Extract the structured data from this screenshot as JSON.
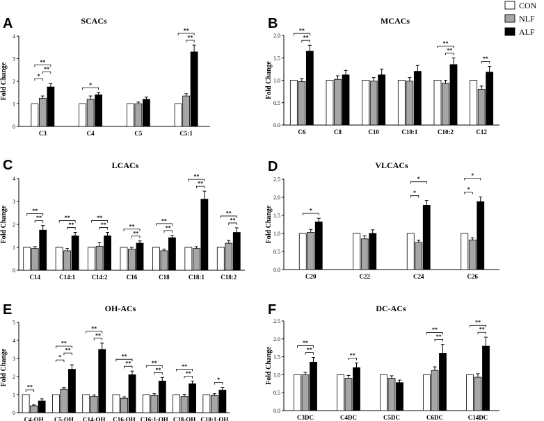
{
  "legend": {
    "entries": [
      {
        "label": "CON",
        "color": "#ffffff"
      },
      {
        "label": "NLF",
        "color": "#a6a6a6"
      },
      {
        "label": "ALF",
        "color": "#000000"
      }
    ]
  },
  "chart_data": [
    {
      "id": "A",
      "type": "bar",
      "title": "SCACs",
      "ylabel": "Fold Change",
      "ylim": [
        0,
        4
      ],
      "yticks": [
        "0",
        "1",
        "2",
        "3",
        "4"
      ],
      "categories": [
        "C3",
        "C4",
        "C5",
        "C5:1"
      ],
      "series": [
        {
          "name": "CON",
          "values": [
            1.0,
            1.0,
            1.0,
            1.0
          ],
          "errors": [
            0,
            0,
            0,
            0
          ]
        },
        {
          "name": "NLF",
          "values": [
            1.25,
            1.2,
            1.0,
            1.35
          ],
          "errors": [
            0.1,
            0.15,
            0.08,
            0.1
          ]
        },
        {
          "name": "ALF",
          "values": [
            1.75,
            1.4,
            1.2,
            3.3
          ],
          "errors": [
            0.15,
            0.1,
            0.1,
            0.3
          ]
        }
      ],
      "annotations": [
        {
          "category": 0,
          "from": 0,
          "to": 1,
          "label": "*",
          "level": 0
        },
        {
          "category": 0,
          "from": 1,
          "to": 2,
          "label": "**",
          "level": 1
        },
        {
          "category": 0,
          "from": 0,
          "to": 2,
          "label": "**",
          "level": 2
        },
        {
          "category": 1,
          "from": 0,
          "to": 2,
          "label": "*",
          "level": 0
        },
        {
          "category": 3,
          "from": 1,
          "to": 2,
          "label": "**",
          "level": 0
        },
        {
          "category": 3,
          "from": 0,
          "to": 2,
          "label": "**",
          "level": 1
        }
      ]
    },
    {
      "id": "B",
      "type": "bar",
      "title": "MCACs",
      "ylabel": "Fold Change",
      "ylim": [
        0,
        2
      ],
      "yticks": [
        "0.0",
        "0.5",
        "1.0",
        "1.5",
        "2.0"
      ],
      "categories": [
        "C6",
        "C8",
        "C10",
        "C10:1",
        "C10:2",
        "C12"
      ],
      "series": [
        {
          "name": "CON",
          "values": [
            1.0,
            1.0,
            1.0,
            1.0,
            1.0,
            1.0
          ],
          "errors": [
            0,
            0,
            0,
            0,
            0,
            0
          ]
        },
        {
          "name": "NLF",
          "values": [
            0.97,
            1.02,
            0.98,
            0.98,
            0.93,
            0.8
          ],
          "errors": [
            0.07,
            0.08,
            0.08,
            0.08,
            0.07,
            0.07
          ]
        },
        {
          "name": "ALF",
          "values": [
            1.65,
            1.12,
            1.12,
            1.2,
            1.35,
            1.18
          ],
          "errors": [
            0.13,
            0.1,
            0.13,
            0.13,
            0.15,
            0.13
          ]
        }
      ],
      "annotations": [
        {
          "category": 0,
          "from": 1,
          "to": 2,
          "label": "**",
          "level": 0
        },
        {
          "category": 0,
          "from": 0,
          "to": 2,
          "label": "**",
          "level": 1
        },
        {
          "category": 4,
          "from": 1,
          "to": 2,
          "label": "**",
          "level": 0
        },
        {
          "category": 4,
          "from": 0,
          "to": 2,
          "label": "**",
          "level": 1
        },
        {
          "category": 5,
          "from": 1,
          "to": 2,
          "label": "**",
          "level": 0
        }
      ]
    },
    {
      "id": "C",
      "type": "bar",
      "title": "LCACs",
      "ylabel": "Fold Change",
      "ylim": [
        0,
        4
      ],
      "yticks": [
        "0",
        "1",
        "2",
        "3",
        "4"
      ],
      "categories": [
        "C14",
        "C14:1",
        "C14:2",
        "C16",
        "C18",
        "C18:1",
        "C18:2"
      ],
      "series": [
        {
          "name": "CON",
          "values": [
            1.0,
            1.0,
            1.0,
            1.0,
            1.0,
            1.0,
            1.0
          ],
          "errors": [
            0,
            0,
            0,
            0,
            0,
            0,
            0
          ]
        },
        {
          "name": "NLF",
          "values": [
            0.95,
            0.85,
            1.05,
            0.92,
            0.85,
            0.95,
            1.18
          ],
          "errors": [
            0.08,
            0.1,
            0.15,
            0.08,
            0.07,
            0.08,
            0.12
          ]
        },
        {
          "name": "ALF",
          "values": [
            1.75,
            1.5,
            1.5,
            1.18,
            1.42,
            3.1,
            1.65
          ],
          "errors": [
            0.2,
            0.15,
            0.15,
            0.1,
            0.1,
            0.35,
            0.2
          ]
        }
      ],
      "annotations": [
        {
          "category": 0,
          "from": 1,
          "to": 2,
          "label": "**",
          "level": 0
        },
        {
          "category": 0,
          "from": 0,
          "to": 2,
          "label": "**",
          "level": 1
        },
        {
          "category": 1,
          "from": 1,
          "to": 2,
          "label": "**",
          "level": 0
        },
        {
          "category": 1,
          "from": 0,
          "to": 2,
          "label": "**",
          "level": 1
        },
        {
          "category": 2,
          "from": 1,
          "to": 2,
          "label": "**",
          "level": 0
        },
        {
          "category": 2,
          "from": 0,
          "to": 2,
          "label": "**",
          "level": 1
        },
        {
          "category": 3,
          "from": 1,
          "to": 2,
          "label": "**",
          "level": 0
        },
        {
          "category": 3,
          "from": 0,
          "to": 2,
          "label": "**",
          "level": 1
        },
        {
          "category": 4,
          "from": 1,
          "to": 2,
          "label": "**",
          "level": 0
        },
        {
          "category": 4,
          "from": 0,
          "to": 2,
          "label": "**",
          "level": 1
        },
        {
          "category": 5,
          "from": 1,
          "to": 2,
          "label": "**",
          "level": 0
        },
        {
          "category": 5,
          "from": 0,
          "to": 2,
          "label": "**",
          "level": 1
        },
        {
          "category": 6,
          "from": 1,
          "to": 2,
          "label": "**",
          "level": 0
        },
        {
          "category": 6,
          "from": 0,
          "to": 2,
          "label": "**",
          "level": 1
        }
      ]
    },
    {
      "id": "D",
      "type": "bar",
      "title": "VLCACs",
      "ylabel": "Fold Change",
      "ylim": [
        0,
        2.5
      ],
      "yticks": [
        "0.0",
        "0.5",
        "1.0",
        "1.5",
        "2.0",
        "2.5"
      ],
      "categories": [
        "C20",
        "C22",
        "C24",
        "C26"
      ],
      "series": [
        {
          "name": "CON",
          "values": [
            1.0,
            1.0,
            1.0,
            1.0
          ],
          "errors": [
            0,
            0,
            0,
            0
          ]
        },
        {
          "name": "NLF",
          "values": [
            1.03,
            0.85,
            0.75,
            0.82
          ],
          "errors": [
            0.08,
            0.08,
            0.06,
            0.06
          ]
        },
        {
          "name": "ALF",
          "values": [
            1.32,
            1.0,
            1.78,
            1.88
          ],
          "errors": [
            0.1,
            0.1,
            0.13,
            0.13
          ]
        }
      ],
      "annotations": [
        {
          "category": 0,
          "from": 0,
          "to": 2,
          "label": "*",
          "level": 0
        },
        {
          "category": 2,
          "from": 0,
          "to": 1,
          "label": "*",
          "level": 0
        },
        {
          "category": 2,
          "from": 0,
          "to": 2,
          "label": "*",
          "level": 2
        },
        {
          "category": 3,
          "from": 0,
          "to": 1,
          "label": "*",
          "level": 0
        },
        {
          "category": 3,
          "from": 0,
          "to": 2,
          "label": "*",
          "level": 2
        }
      ]
    },
    {
      "id": "E",
      "type": "bar",
      "title": "OH-ACs",
      "ylabel": "Fold Change",
      "ylim": [
        0,
        5
      ],
      "yticks": [
        "0",
        "1",
        "2",
        "3",
        "4",
        "5"
      ],
      "categories": [
        "C4-OH",
        "C5-OH",
        "C14-OH",
        "C16-OH",
        "C16:1-OH",
        "C18-OH",
        "C18:1-OH"
      ],
      "series": [
        {
          "name": "CON",
          "values": [
            1.0,
            1.0,
            1.0,
            1.0,
            1.0,
            1.0,
            1.0
          ],
          "errors": [
            0,
            0,
            0,
            0,
            0,
            0,
            0
          ]
        },
        {
          "name": "NLF",
          "values": [
            0.38,
            1.3,
            0.9,
            0.8,
            0.95,
            0.9,
            0.95
          ],
          "errors": [
            0.05,
            0.1,
            0.08,
            0.08,
            0.1,
            0.12,
            0.1
          ]
        },
        {
          "name": "ALF",
          "values": [
            0.65,
            2.4,
            3.5,
            2.1,
            1.75,
            1.6,
            1.25
          ],
          "errors": [
            0.12,
            0.25,
            0.35,
            0.2,
            0.2,
            0.15,
            0.15
          ]
        }
      ],
      "annotations": [
        {
          "category": 0,
          "from": 0,
          "to": 1,
          "label": "**",
          "level": 0
        },
        {
          "category": 1,
          "from": 0,
          "to": 1,
          "label": "*",
          "level": 0
        },
        {
          "category": 1,
          "from": 1,
          "to": 2,
          "label": "**",
          "level": 1
        },
        {
          "category": 1,
          "from": 0,
          "to": 2,
          "label": "**",
          "level": 2
        },
        {
          "category": 2,
          "from": 1,
          "to": 2,
          "label": "**",
          "level": 0
        },
        {
          "category": 2,
          "from": 0,
          "to": 2,
          "label": "**",
          "level": 1
        },
        {
          "category": 3,
          "from": 1,
          "to": 2,
          "label": "**",
          "level": 0
        },
        {
          "category": 3,
          "from": 0,
          "to": 2,
          "label": "**",
          "level": 1
        },
        {
          "category": 4,
          "from": 1,
          "to": 2,
          "label": "**",
          "level": 0
        },
        {
          "category": 4,
          "from": 0,
          "to": 2,
          "label": "**",
          "level": 1
        },
        {
          "category": 5,
          "from": 1,
          "to": 2,
          "label": "**",
          "level": 0
        },
        {
          "category": 5,
          "from": 0,
          "to": 2,
          "label": "**",
          "level": 1
        },
        {
          "category": 6,
          "from": 1,
          "to": 2,
          "label": "*",
          "level": 0
        }
      ]
    },
    {
      "id": "F",
      "type": "bar",
      "title": "DC-ACs",
      "ylabel": "Fold Change",
      "ylim": [
        0,
        2.5
      ],
      "yticks": [
        "0.0",
        "0.5",
        "1.0",
        "1.5",
        "2.0",
        "2.5"
      ],
      "categories": [
        "C3DC",
        "C4DC",
        "C5DC",
        "C6DC",
        "C14DC"
      ],
      "series": [
        {
          "name": "CON",
          "values": [
            1.0,
            1.0,
            1.0,
            1.0,
            1.0
          ],
          "errors": [
            0,
            0,
            0,
            0,
            0
          ]
        },
        {
          "name": "NLF",
          "values": [
            1.0,
            0.9,
            0.9,
            1.12,
            0.93
          ],
          "errors": [
            0.07,
            0.08,
            0.07,
            0.1,
            0.1
          ]
        },
        {
          "name": "ALF",
          "values": [
            1.35,
            1.2,
            0.78,
            1.6,
            1.8
          ],
          "errors": [
            0.13,
            0.13,
            0.07,
            0.25,
            0.25
          ]
        }
      ],
      "annotations": [
        {
          "category": 0,
          "from": 1,
          "to": 2,
          "label": "**",
          "level": 0
        },
        {
          "category": 0,
          "from": 0,
          "to": 2,
          "label": "**",
          "level": 1
        },
        {
          "category": 1,
          "from": 1,
          "to": 2,
          "label": "**",
          "level": 0
        },
        {
          "category": 3,
          "from": 1,
          "to": 2,
          "label": "**",
          "level": 0
        },
        {
          "category": 3,
          "from": 0,
          "to": 2,
          "label": "**",
          "level": 1
        },
        {
          "category": 4,
          "from": 1,
          "to": 2,
          "label": "**",
          "level": 0
        },
        {
          "category": 4,
          "from": 0,
          "to": 2,
          "label": "**",
          "level": 1
        }
      ]
    }
  ]
}
